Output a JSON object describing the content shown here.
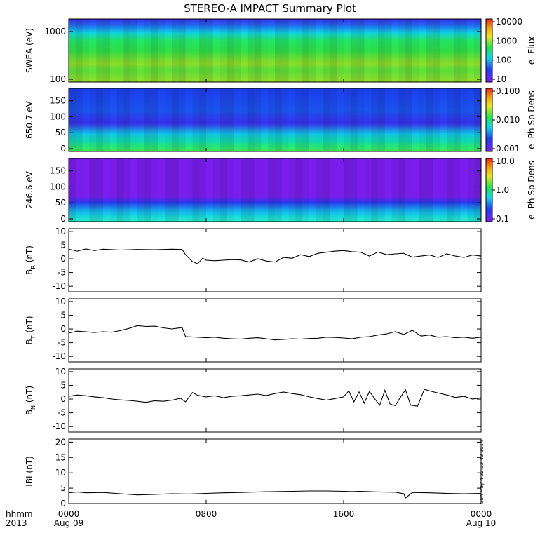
{
  "title": "STEREO-A IMPACT Summary Plot",
  "stamp": "Sun May  4 22:33:43 2014",
  "time_axis": {
    "row1_label": "hhmm",
    "row2_label": "2013",
    "ticks": [
      {
        "hhmm": "0000",
        "date": "Aug 09"
      },
      {
        "hhmm": "0800",
        "date": ""
      },
      {
        "hhmm": "1600",
        "date": ""
      },
      {
        "hhmm": "0000",
        "date": "Aug 10"
      }
    ]
  },
  "chart_data": [
    {
      "type": "heatmap",
      "ylabel": "SWEA (eV)",
      "y_scale": "log",
      "ylim": [
        100,
        1800
      ],
      "yticks": [
        "1000",
        "100"
      ],
      "colorbar": {
        "label": "e- Flux",
        "scale": "log",
        "ticks": [
          "10000",
          "1000",
          "100",
          "10"
        ]
      }
    },
    {
      "type": "heatmap",
      "ylabel": "650.7 eV",
      "ylim": [
        0,
        180
      ],
      "yticks": [
        "150",
        "100",
        "50",
        "0"
      ],
      "colorbar": {
        "label": "e- Ph Sp Dens",
        "scale": "log",
        "ticks": [
          "0.100",
          "0.010",
          "0.001"
        ]
      }
    },
    {
      "type": "heatmap",
      "ylabel": "246.6 eV",
      "ylim": [
        0,
        180
      ],
      "yticks": [
        "150",
        "100",
        "50",
        "0"
      ],
      "colorbar": {
        "label": "e- Ph Sp Dens",
        "scale": "log",
        "ticks": [
          "10.0",
          "1.0",
          "0.1"
        ]
      }
    },
    {
      "type": "line",
      "ylabel_main": "B",
      "ylabel_sub": "R",
      "ylabel_unit": "(nT)",
      "ylim": [
        -12,
        11
      ],
      "yticks": [
        "10",
        "5",
        "0",
        "-5",
        "-10"
      ],
      "x_hours": [
        0,
        0.5,
        1,
        1.5,
        2,
        3,
        4,
        5,
        6,
        6.6,
        6.8,
        7.2,
        7.5,
        7.8,
        8.0,
        8.5,
        9,
        9.5,
        10,
        10.5,
        11,
        11.5,
        12,
        12.5,
        13,
        13.5,
        14,
        14.5,
        15,
        15.5,
        16,
        16.5,
        17,
        17.5,
        18,
        18.5,
        19,
        19.5,
        20,
        20.5,
        21,
        21.5,
        22,
        22.5,
        23,
        23.5,
        24
      ],
      "y": [
        3.5,
        2.8,
        3.6,
        3.0,
        3.5,
        3.2,
        3.4,
        3.3,
        3.5,
        3.4,
        1.5,
        -1.0,
        -1.8,
        0.2,
        -0.5,
        -0.7,
        -0.5,
        -0.3,
        -0.4,
        -1.2,
        0.0,
        -0.8,
        -1.2,
        0.5,
        0.2,
        1.5,
        0.8,
        2.0,
        2.4,
        2.8,
        3.0,
        2.6,
        2.4,
        1.0,
        2.5,
        1.5,
        1.8,
        2.0,
        0.6,
        1.0,
        1.4,
        0.5,
        1.8,
        1.0,
        0.5,
        1.4,
        1.0
      ]
    },
    {
      "type": "line",
      "ylabel_main": "B",
      "ylabel_sub": "T",
      "ylabel_unit": "(nT)",
      "ylim": [
        -12,
        11
      ],
      "yticks": [
        "10",
        "5",
        "0",
        "-5",
        "-10"
      ],
      "x_hours": [
        0,
        0.5,
        1,
        1.5,
        2,
        2.5,
        3,
        3.5,
        4,
        4.5,
        5,
        5.5,
        6,
        6.6,
        6.8,
        7.5,
        8,
        8.5,
        9,
        9.5,
        10,
        10.5,
        11,
        11.5,
        12,
        12.5,
        13,
        13.5,
        14,
        14.5,
        15,
        15.5,
        16,
        16.5,
        17,
        17.5,
        18,
        18.5,
        19,
        19.5,
        20,
        20.5,
        21,
        21.5,
        22,
        22.5,
        23,
        23.5,
        24
      ],
      "y": [
        -1.5,
        -0.8,
        -1.0,
        -1.3,
        -1.0,
        -1.2,
        -0.6,
        0.2,
        1.2,
        0.9,
        1.0,
        0.4,
        0.0,
        0.5,
        -2.8,
        -3.0,
        -3.2,
        -3.0,
        -3.4,
        -3.6,
        -3.7,
        -3.4,
        -3.2,
        -3.6,
        -4.0,
        -3.8,
        -3.6,
        -3.7,
        -3.5,
        -3.4,
        -3.0,
        -3.1,
        -3.3,
        -3.6,
        -3.0,
        -2.8,
        -2.2,
        -1.8,
        -1.0,
        -2.0,
        -0.5,
        -2.6,
        -2.2,
        -3.0,
        -2.8,
        -3.2,
        -3.0,
        -3.4,
        -3.0
      ]
    },
    {
      "type": "line",
      "ylabel_main": "B",
      "ylabel_sub": "N",
      "ylabel_unit": "(nT)",
      "ylim": [
        -12,
        11
      ],
      "yticks": [
        "10",
        "5",
        "0",
        "-5",
        "-10"
      ],
      "x_hours": [
        0,
        0.5,
        1,
        1.5,
        2,
        2.5,
        3,
        3.5,
        4,
        4.5,
        5,
        5.5,
        6,
        6.5,
        6.8,
        7.2,
        7.5,
        8,
        8.5,
        9,
        9.5,
        10,
        10.5,
        11,
        11.5,
        12,
        12.5,
        13,
        13.5,
        14,
        14.5,
        15,
        15.5,
        16,
        16.3,
        16.6,
        16.9,
        17.2,
        17.5,
        17.8,
        18.1,
        18.4,
        18.7,
        19.0,
        19.3,
        19.6,
        19.9,
        20.3,
        20.7,
        21,
        21.5,
        22,
        22.5,
        23,
        23.5,
        24
      ],
      "y": [
        1.0,
        1.5,
        1.2,
        0.8,
        0.5,
        0.0,
        -0.3,
        -0.5,
        -0.8,
        -1.2,
        -0.6,
        -0.8,
        -0.4,
        0.3,
        -1.0,
        2.4,
        1.4,
        0.8,
        1.2,
        0.5,
        1.0,
        1.2,
        1.5,
        1.8,
        1.3,
        2.0,
        2.6,
        2.0,
        1.6,
        0.8,
        0.2,
        -0.4,
        0.2,
        0.8,
        3.0,
        -1.0,
        2.6,
        -1.5,
        2.8,
        0.2,
        -2.2,
        3.2,
        -1.8,
        -2.4,
        0.6,
        3.4,
        -2.2,
        -2.6,
        3.6,
        3.0,
        2.2,
        1.5,
        0.6,
        1.0,
        0.0,
        0.5
      ]
    },
    {
      "type": "line",
      "ylabel_main": "IBI",
      "ylabel_sub": "",
      "ylabel_unit": "(nT)",
      "ylim": [
        0,
        21
      ],
      "yticks": [
        "20",
        "15",
        "10",
        "5",
        "0"
      ],
      "x_hours": [
        0,
        0.5,
        1,
        2,
        3,
        4,
        5,
        6,
        7,
        8,
        9,
        10,
        11,
        12,
        13,
        14,
        15,
        16,
        16.5,
        17,
        18,
        19,
        19.5,
        19.6,
        20,
        21,
        22,
        23,
        24
      ],
      "y": [
        3.5,
        3.8,
        3.5,
        3.6,
        3.2,
        2.8,
        3.0,
        3.2,
        3.1,
        3.3,
        3.5,
        3.6,
        3.8,
        3.9,
        4.0,
        4.1,
        4.1,
        4.0,
        3.9,
        4.0,
        3.8,
        3.7,
        3.2,
        1.8,
        3.6,
        3.5,
        3.3,
        3.2,
        3.3
      ]
    }
  ]
}
